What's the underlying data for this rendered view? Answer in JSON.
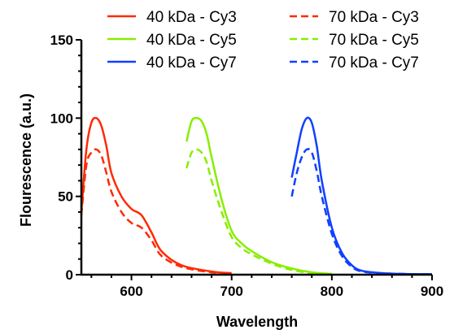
{
  "chart_data": {
    "type": "line",
    "title": "",
    "xlabel": "Wavelength",
    "ylabel": "Flourescence (a.u.)",
    "xlim": [
      550,
      900
    ],
    "ylim": [
      0,
      150
    ],
    "x_ticks": [
      600,
      700,
      800,
      900
    ],
    "y_ticks": [
      0,
      50,
      100,
      150
    ],
    "grid": false,
    "legend_position": "top",
    "colors": {
      "cy3": "#ff2a00",
      "cy5": "#88ee00",
      "cy7": "#1040ff"
    },
    "series": [
      {
        "name": "40 kDa - Cy3",
        "color": "#ff2a00",
        "dash": "solid",
        "x": [
          550,
          555,
          560,
          565,
          570,
          575,
          580,
          590,
          600,
          610,
          620,
          630,
          650,
          680,
          700
        ],
        "y": [
          40,
          80,
          97,
          100,
          95,
          82,
          65,
          50,
          42,
          38,
          27,
          15,
          6,
          2,
          1
        ]
      },
      {
        "name": "70 kDa - Cy3",
        "color": "#ff2a00",
        "dash": "dashed",
        "x": [
          550,
          555,
          560,
          565,
          570,
          575,
          580,
          590,
          600,
          610,
          620,
          630,
          650,
          680,
          700
        ],
        "y": [
          38,
          70,
          78,
          80,
          76,
          65,
          53,
          40,
          33,
          30,
          22,
          12,
          5,
          1.5,
          1
        ]
      },
      {
        "name": "40 kDa - Cy5",
        "color": "#88ee00",
        "dash": "solid",
        "x": [
          655,
          660,
          665,
          670,
          675,
          680,
          690,
          700,
          710,
          720,
          740,
          760,
          780,
          800
        ],
        "y": [
          85,
          98,
          100,
          98,
          90,
          75,
          48,
          28,
          20,
          15,
          8,
          4,
          1.5,
          0.5
        ]
      },
      {
        "name": "70 kDa - Cy5",
        "color": "#88ee00",
        "dash": "dashed",
        "x": [
          655,
          660,
          665,
          670,
          675,
          680,
          690,
          700,
          710,
          720,
          740,
          760,
          780,
          800
        ],
        "y": [
          68,
          78,
          80,
          78,
          72,
          60,
          40,
          24,
          17,
          13,
          7,
          3,
          1,
          0.5
        ]
      },
      {
        "name": "40 kDa - Cy7",
        "color": "#1040ff",
        "dash": "solid",
        "x": [
          760,
          765,
          770,
          775,
          780,
          785,
          790,
          800,
          810,
          820,
          830,
          850,
          870,
          900
        ],
        "y": [
          62,
          78,
          93,
          100,
          97,
          82,
          60,
          30,
          14,
          6,
          2.5,
          1,
          0.5,
          0.3
        ]
      },
      {
        "name": "70 kDa - Cy7",
        "color": "#1040ff",
        "dash": "dashed",
        "x": [
          760,
          765,
          770,
          775,
          780,
          785,
          790,
          800,
          810,
          820,
          830,
          850,
          870,
          900
        ],
        "y": [
          50,
          65,
          75,
          80,
          78,
          66,
          50,
          26,
          12,
          5,
          2,
          1,
          0.5,
          0.3
        ]
      }
    ]
  }
}
